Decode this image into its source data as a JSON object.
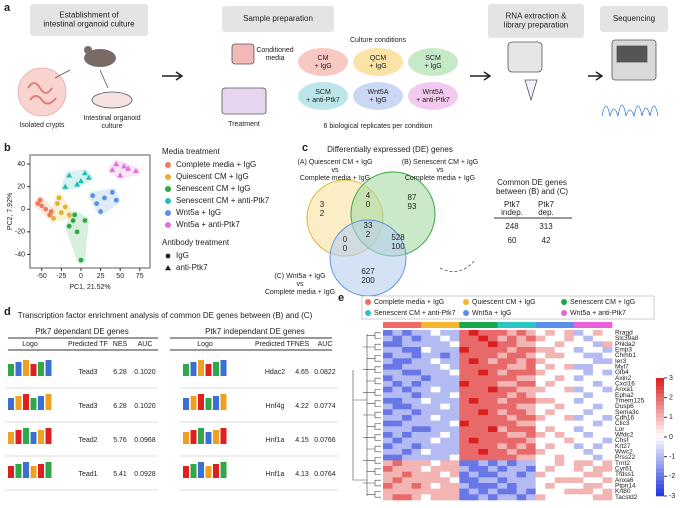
{
  "panel_labels": [
    "a",
    "b",
    "c",
    "d",
    "e"
  ],
  "workflow": {
    "step1": [
      "Establishment of",
      "intestinal organoid culture"
    ],
    "step2": [
      "Sample preparation"
    ],
    "step3": [
      "RNA extraction &",
      "library preparation"
    ],
    "step4": [
      "Sequencing"
    ],
    "isolated_crypts": "Isolated crypts",
    "organoid_culture": [
      "Intestinal organoid",
      "culture"
    ],
    "conditioned_media": [
      "Conditioned",
      "media"
    ],
    "treatment": "Treatment",
    "culture_conditions": "Culture conditions",
    "conditions": [
      {
        "lines": [
          "CM",
          "+ IgG"
        ],
        "color": "#f8c9c2"
      },
      {
        "lines": [
          "QCM",
          "+ IgG"
        ],
        "color": "#fbe2a6"
      },
      {
        "lines": [
          "SCM",
          "+ IgG"
        ],
        "color": "#c6eac8"
      },
      {
        "lines": [
          "SCM",
          "+ anti-Ptk7"
        ],
        "color": "#bce6ea"
      },
      {
        "lines": [
          "Wnt5A",
          "+ IgG"
        ],
        "color": "#cad8f5"
      },
      {
        "lines": [
          "Wnt5A",
          "+ anti-Ptk7"
        ],
        "color": "#f3c9ef"
      }
    ],
    "replicates": "6 biological replicates per condition"
  },
  "chart_data": [
    {
      "type": "scatter",
      "xlabel": "PC1, 21.52%",
      "ylabel": "PC2, 7.92%",
      "xlim": [
        -65,
        88
      ],
      "ylim": [
        -52,
        48
      ],
      "xticks": [
        -50,
        -25,
        0,
        25,
        50,
        75
      ],
      "yticks": [
        -40,
        -20,
        0,
        20,
        40
      ],
      "legend_title": "Media treatment",
      "marker_legend_title": "Antibody treatment",
      "markers": [
        {
          "name": "IgG",
          "marker": "circle"
        },
        {
          "name": "anti-Ptk7",
          "marker": "triangle"
        }
      ],
      "series": [
        {
          "name": "Complete media + IgG",
          "color": "#f07a5a",
          "marker": "circle",
          "x": [
            -55,
            -50,
            -45,
            -40,
            -52,
            -38
          ],
          "y": [
            5,
            3,
            0,
            -5,
            8,
            -2
          ]
        },
        {
          "name": "Quiescent CM + IgG",
          "color": "#e0b32a",
          "marker": "circle",
          "x": [
            -30,
            -25,
            -20,
            -35,
            -15,
            -28
          ],
          "y": [
            5,
            -3,
            2,
            -8,
            -5,
            10
          ]
        },
        {
          "name": "Senescent CM + IgG",
          "color": "#2fa84a",
          "marker": "circle",
          "x": [
            -10,
            -5,
            0,
            -15,
            5,
            -8
          ],
          "y": [
            -10,
            -20,
            -45,
            -15,
            -10,
            -5
          ]
        },
        {
          "name": "Senescent CM + anti-Ptk7",
          "color": "#24bdb4",
          "marker": "triangle",
          "x": [
            -15,
            0,
            -20,
            5,
            10,
            -5
          ],
          "y": [
            30,
            25,
            20,
            32,
            28,
            22
          ]
        },
        {
          "name": "Wnt5a + IgG",
          "color": "#5b8fe0",
          "marker": "circle",
          "x": [
            20,
            30,
            45,
            25,
            40,
            15
          ],
          "y": [
            5,
            10,
            8,
            -2,
            15,
            12
          ]
        },
        {
          "name": "Wnt5a + anti-Ptk7",
          "color": "#e66ddc",
          "marker": "triangle",
          "x": [
            40,
            55,
            60,
            70,
            50,
            45
          ],
          "y": [
            35,
            38,
            36,
            34,
            30,
            40
          ]
        }
      ]
    },
    {
      "type": "heatmap",
      "groups": [
        {
          "name": "Complete media + IgG",
          "color": "#f06a6a"
        },
        {
          "name": "Quiescent CM + IgG",
          "color": "#f5b731"
        },
        {
          "name": "Senescent CM + IgG",
          "color": "#1aa64a"
        },
        {
          "name": "Senescent CM + anti-Ptk7",
          "color": "#2ec4c4"
        },
        {
          "name": "Wnt5a + IgG",
          "color": "#5b8fe8"
        },
        {
          "name": "Wnt5a + anti-Ptk7",
          "color": "#e861d8"
        }
      ],
      "column_groups": [
        0,
        0,
        0,
        0,
        1,
        1,
        1,
        1,
        2,
        2,
        2,
        2,
        3,
        3,
        3,
        3,
        4,
        4,
        4,
        4,
        5,
        5,
        5,
        5
      ],
      "rows": [
        "Rragd",
        "Slc39a8",
        "Phlda2",
        "Emp3",
        "Chmb1",
        "Ier3",
        "Myl7",
        "Glb4",
        "Axin2",
        "Cxcl16",
        "Anxa1",
        "Epha2",
        "Tmem125",
        "Dusp6",
        "Sema3c",
        "Cdh16",
        "Clic3",
        "Lor",
        "Wfdc2",
        "Chsf",
        "Krt27",
        "Wwc2",
        "Prss22",
        "Trnt2",
        "Cyr61",
        "Tfdss1",
        "Anxa6",
        "Ptpn14",
        "Krt80",
        "Tacstd2"
      ],
      "values": [
        [
          -2,
          -1,
          -2,
          -1,
          -1,
          0,
          -1,
          -1,
          2,
          3,
          2,
          2,
          2,
          1,
          2,
          1,
          0,
          1,
          0,
          1,
          -1,
          0,
          1,
          0
        ],
        [
          -1,
          -2,
          -1,
          -2,
          -1,
          -1,
          0,
          -1,
          2,
          2,
          3,
          2,
          1,
          2,
          1,
          2,
          1,
          0,
          0,
          1,
          0,
          -1,
          0,
          0
        ],
        [
          -2,
          -2,
          -1,
          -1,
          -1,
          -1,
          -1,
          0,
          2,
          2,
          2,
          3,
          2,
          2,
          1,
          1,
          0,
          0,
          1,
          0,
          0,
          0,
          -1,
          1
        ],
        [
          -1,
          -1,
          -2,
          -2,
          0,
          -1,
          -1,
          -1,
          3,
          2,
          2,
          2,
          2,
          1,
          2,
          2,
          1,
          1,
          0,
          0,
          -1,
          0,
          0,
          -1
        ],
        [
          -2,
          -1,
          -1,
          -2,
          -1,
          -1,
          -2,
          -1,
          2,
          2,
          2,
          2,
          1,
          2,
          2,
          1,
          0,
          1,
          1,
          0,
          0,
          -1,
          -1,
          0
        ],
        [
          -1,
          -2,
          -2,
          -1,
          -1,
          0,
          -1,
          -1,
          2,
          3,
          2,
          1,
          2,
          2,
          1,
          2,
          1,
          0,
          0,
          0,
          0,
          0,
          -1,
          -1
        ],
        [
          -2,
          -2,
          -1,
          -1,
          -1,
          -1,
          0,
          -1,
          2,
          2,
          2,
          2,
          2,
          1,
          1,
          2,
          0,
          1,
          0,
          1,
          -1,
          -1,
          0,
          0
        ],
        [
          -1,
          -1,
          -2,
          -2,
          -1,
          -1,
          -1,
          0,
          2,
          2,
          3,
          2,
          1,
          2,
          2,
          2,
          1,
          0,
          0,
          0,
          0,
          -1,
          0,
          -1
        ],
        [
          -2,
          -1,
          -1,
          -1,
          -2,
          -1,
          -1,
          -1,
          2,
          2,
          2,
          2,
          2,
          2,
          1,
          1,
          0,
          0,
          1,
          0,
          -1,
          0,
          0,
          0
        ],
        [
          -1,
          -2,
          -1,
          -2,
          -1,
          -1,
          -1,
          -1,
          3,
          2,
          2,
          2,
          1,
          1,
          2,
          2,
          0,
          1,
          0,
          0,
          0,
          0,
          -1,
          0
        ],
        [
          -2,
          -1,
          -2,
          -1,
          -1,
          0,
          -1,
          -1,
          2,
          2,
          2,
          3,
          2,
          2,
          1,
          1,
          1,
          0,
          0,
          1,
          -1,
          0,
          0,
          -1
        ],
        [
          -1,
          -1,
          -1,
          -2,
          -1,
          -1,
          -1,
          0,
          2,
          2,
          2,
          2,
          2,
          1,
          2,
          1,
          0,
          0,
          0,
          0,
          0,
          -1,
          0,
          0
        ],
        [
          -2,
          -2,
          -1,
          -1,
          0,
          -1,
          -1,
          -1,
          2,
          3,
          2,
          2,
          1,
          2,
          2,
          2,
          1,
          1,
          0,
          0,
          -1,
          0,
          0,
          0
        ],
        [
          -1,
          -2,
          -2,
          -1,
          -1,
          -1,
          0,
          -1,
          2,
          2,
          2,
          2,
          2,
          2,
          1,
          1,
          0,
          0,
          1,
          0,
          0,
          0,
          -1,
          0
        ],
        [
          -2,
          -1,
          -1,
          -2,
          -1,
          -1,
          -1,
          -1,
          2,
          2,
          3,
          2,
          1,
          2,
          2,
          1,
          0,
          1,
          0,
          0,
          0,
          -1,
          0,
          0
        ],
        [
          -1,
          -1,
          -2,
          -1,
          -1,
          0,
          -1,
          -1,
          2,
          2,
          2,
          2,
          2,
          1,
          2,
          2,
          1,
          0,
          0,
          1,
          -1,
          0,
          0,
          -1
        ],
        [
          -2,
          -2,
          -1,
          -1,
          -1,
          -1,
          -1,
          0,
          3,
          2,
          2,
          2,
          2,
          2,
          1,
          1,
          0,
          0,
          0,
          0,
          0,
          0,
          -1,
          0
        ],
        [
          -1,
          -1,
          -1,
          -2,
          -2,
          -1,
          -1,
          -1,
          2,
          2,
          2,
          3,
          1,
          2,
          2,
          2,
          0,
          1,
          0,
          0,
          -1,
          0,
          0,
          0
        ],
        [
          -2,
          -1,
          -2,
          -1,
          -1,
          -1,
          0,
          -1,
          2,
          2,
          2,
          2,
          2,
          1,
          1,
          2,
          1,
          0,
          1,
          0,
          0,
          -1,
          0,
          0
        ],
        [
          -1,
          -2,
          -1,
          -1,
          -1,
          0,
          -1,
          -1,
          2,
          3,
          2,
          2,
          2,
          2,
          2,
          1,
          0,
          0,
          0,
          1,
          0,
          0,
          0,
          -1
        ],
        [
          -2,
          -1,
          -1,
          -2,
          -1,
          -1,
          -1,
          -1,
          2,
          2,
          2,
          2,
          1,
          2,
          1,
          2,
          0,
          1,
          0,
          0,
          -1,
          0,
          -1,
          0
        ],
        [
          -1,
          -1,
          -2,
          -1,
          0,
          -1,
          -1,
          -1,
          2,
          2,
          3,
          2,
          2,
          1,
          2,
          2,
          1,
          0,
          0,
          0,
          0,
          -1,
          0,
          0
        ],
        [
          -2,
          -2,
          -1,
          -1,
          -1,
          -1,
          -1,
          0,
          2,
          2,
          2,
          2,
          2,
          2,
          1,
          1,
          0,
          0,
          1,
          0,
          0,
          0,
          -1,
          0
        ],
        [
          1,
          2,
          1,
          1,
          1,
          0,
          1,
          1,
          -2,
          -2,
          -1,
          -2,
          -1,
          -2,
          -1,
          -1,
          0,
          0,
          1,
          0,
          1,
          1,
          0,
          1
        ],
        [
          2,
          1,
          1,
          1,
          0,
          1,
          1,
          1,
          -1,
          -2,
          -2,
          -1,
          -2,
          -1,
          -1,
          -2,
          0,
          1,
          0,
          0,
          1,
          0,
          1,
          1
        ],
        [
          1,
          1,
          2,
          1,
          1,
          1,
          0,
          1,
          -2,
          -1,
          -2,
          -2,
          -1,
          -1,
          -2,
          -1,
          1,
          0,
          0,
          0,
          0,
          1,
          1,
          0
        ],
        [
          1,
          2,
          1,
          1,
          1,
          1,
          1,
          0,
          -2,
          -2,
          -1,
          -1,
          -2,
          -1,
          -1,
          -1,
          0,
          0,
          1,
          1,
          1,
          0,
          0,
          1
        ],
        [
          2,
          1,
          1,
          2,
          1,
          0,
          1,
          1,
          -1,
          -2,
          -2,
          -2,
          -1,
          -2,
          -1,
          -1,
          0,
          1,
          0,
          0,
          0,
          1,
          1,
          0
        ],
        [
          1,
          1,
          1,
          1,
          1,
          1,
          1,
          1,
          -2,
          -1,
          -2,
          -1,
          -2,
          -2,
          -1,
          -2,
          0,
          0,
          0,
          1,
          1,
          1,
          0,
          1
        ],
        [
          1,
          2,
          2,
          1,
          0,
          1,
          1,
          1,
          -2,
          -2,
          -1,
          -2,
          -1,
          -1,
          -2,
          -1,
          1,
          0,
          0,
          0,
          0,
          0,
          1,
          1
        ]
      ],
      "zlim": [
        -3,
        3
      ],
      "zticks": [
        3,
        2,
        1,
        0,
        -1,
        -2,
        -3
      ]
    }
  ],
  "venn": {
    "title": "Differentially expressed (DE) genes",
    "set_a": [
      "(A) Quiescent CM + IgG",
      "vs",
      "Complete media + IgG"
    ],
    "set_b": [
      "(B) Senescent CM + IgG",
      "vs",
      "Complete media + IgG"
    ],
    "set_c": [
      "(C) Wnt5a + IgG",
      "vs",
      "Complete media + IgG"
    ],
    "regions": [
      {
        "up": 3,
        "down": 2
      },
      {
        "up": 4,
        "down": 0
      },
      {
        "up": 87,
        "down": 93
      },
      {
        "up": 0,
        "down": 0
      },
      {
        "up": 33,
        "down": 2
      },
      {
        "up": 528,
        "down": 100
      },
      {
        "up": 627,
        "down": 200
      }
    ],
    "table_title": [
      "Common DE genes",
      "between (B) and (C)"
    ],
    "table_headers": [
      [
        "Ptk7",
        "indep."
      ],
      [
        "Ptk7",
        "dep."
      ]
    ],
    "table_rows": [
      [
        248,
        313
      ],
      [
        60,
        42
      ]
    ]
  },
  "tf_table": {
    "title": "Transcription factor enrichment analysis of common DE genes between (B) and (C)",
    "left_title": "Ptk7 dependant DE genes",
    "right_title": "Ptk7 independant DE genes",
    "headers": [
      "Logo",
      "Predicted TF",
      "NES",
      "AUC"
    ],
    "left_rows": [
      [
        "Tead3",
        "6.28",
        "0.1020"
      ],
      [
        "Tead3",
        "6.28",
        "0.1020"
      ],
      [
        "Tead2",
        "5.76",
        "0.0968"
      ],
      [
        "Tead1",
        "5.41",
        "0.0928"
      ]
    ],
    "right_rows": [
      [
        "Hdac2",
        "4.65",
        "0.0822"
      ],
      [
        "Hnf4g",
        "4.22",
        "0.0774"
      ],
      [
        "Hnf1a",
        "4.15",
        "0.0766"
      ],
      [
        "Hnf1a",
        "4.13",
        "0.0764"
      ]
    ]
  }
}
